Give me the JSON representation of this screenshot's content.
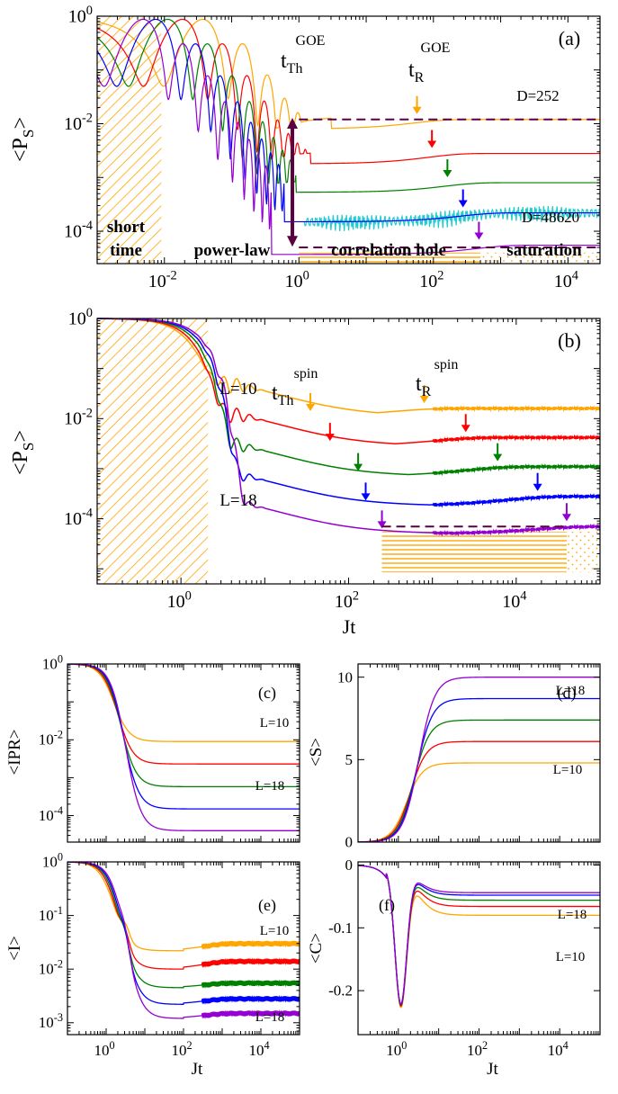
{
  "colors": {
    "orange": "#ffa500",
    "red": "#ff0000",
    "green": "#008000",
    "blue": "#0000ff",
    "violet": "#9400d3",
    "cyan": "#22cccc",
    "maroon": "#5a0040",
    "hatch": "#ffa500"
  },
  "chart_data": [
    {
      "id": "a",
      "type": "line",
      "panel_label": "(a)",
      "ylabel": "<P_S>",
      "xlabel": "",
      "xscale": "log",
      "yscale": "log",
      "xlim": [
        0.001,
        30000
      ],
      "ylim": [
        2.5e-05,
        1
      ],
      "xticks": [
        0.01,
        1,
        100,
        10000
      ],
      "xtick_exps": [
        "-2",
        "0",
        "2",
        "4"
      ],
      "yticks": [
        0.0001,
        0.01,
        1
      ],
      "ytick_exps": [
        "-4",
        "-2",
        "0"
      ],
      "annotations": {
        "tth": {
          "main": "t",
          "sub": "Th",
          "sup": "GOE"
        },
        "tr": {
          "main": "t",
          "sub": "R",
          "sup": "GOE"
        },
        "d_top": "D=252",
        "d_bottom": "D=48620",
        "regions": [
          "short time",
          "power-law",
          "correlation hole",
          "saturation"
        ]
      },
      "series": [
        {
          "color": "orange",
          "sat": 0.012,
          "tw": 0.1,
          "min": 0.008,
          "tr": 60
        },
        {
          "color": "red",
          "sat": 0.0028,
          "tw": 0.05,
          "min": 0.0018,
          "tr": 100
        },
        {
          "color": "green",
          "sat": 0.0008,
          "tw": 0.03,
          "min": 0.00053,
          "tr": 170
        },
        {
          "color": "blue",
          "sat": 0.00022,
          "tw": 0.02,
          "min": 0.00015,
          "tr": 290
        },
        {
          "color": "violet",
          "sat": 5.5e-05,
          "tw": 0.013,
          "min": 3.7e-05,
          "tr": 500
        }
      ]
    },
    {
      "id": "b",
      "type": "line",
      "panel_label": "(b)",
      "ylabel": "<P_S>",
      "xlabel": "Jt",
      "xscale": "log",
      "yscale": "log",
      "xlim": [
        0.1,
        100000
      ],
      "ylim": [
        5e-06,
        1
      ],
      "xticks": [
        1,
        100,
        10000
      ],
      "xtick_exps": [
        "0",
        "2",
        "4"
      ],
      "yticks": [
        0.0001,
        0.01,
        1
      ],
      "ytick_exps": [
        "-4",
        "-2",
        "0"
      ],
      "annotations": {
        "tth": {
          "main": "t",
          "sub": "Th",
          "sup": "spin"
        },
        "tr": {
          "main": "t",
          "sub": "R",
          "sup": "spin"
        },
        "l_top": "L=10",
        "l_bottom": "L=18"
      },
      "series": [
        {
          "color": "orange",
          "sat": 0.016,
          "min": 0.011,
          "tth": 35,
          "tr": 800
        },
        {
          "color": "red",
          "sat": 0.0042,
          "min": 0.0028,
          "tth": 60,
          "tr": 2500
        },
        {
          "color": "green",
          "sat": 0.0011,
          "min": 0.0007,
          "tth": 130,
          "tr": 6000
        },
        {
          "color": "blue",
          "sat": 0.00028,
          "min": 0.00018,
          "tth": 160,
          "tr": 18000
        },
        {
          "color": "violet",
          "sat": 7e-05,
          "min": 5e-05,
          "tth": 250,
          "tr": 40000
        }
      ]
    },
    {
      "id": "c",
      "type": "line",
      "panel_label": "(c)",
      "ylabel": "<IPR>",
      "xlabel": "",
      "xscale": "log",
      "yscale": "log",
      "xlim": [
        0.1,
        100000
      ],
      "ylim": [
        2e-05,
        1
      ],
      "xticks": [],
      "xtick_exps": [],
      "yticks": [
        0.0001,
        0.01,
        1
      ],
      "ytick_exps": [
        "-4",
        "-2",
        "0"
      ],
      "annotations": {
        "l_top": "L=10",
        "l_bottom": "L=18"
      },
      "series": [
        {
          "color": "orange",
          "sat": 0.009
        },
        {
          "color": "red",
          "sat": 0.0023
        },
        {
          "color": "green",
          "sat": 0.00058
        },
        {
          "color": "blue",
          "sat": 0.00015
        },
        {
          "color": "violet",
          "sat": 4e-05
        }
      ]
    },
    {
      "id": "d",
      "type": "line",
      "panel_label": "(d)",
      "ylabel": "<S>",
      "xlabel": "",
      "xscale": "log",
      "yscale": "linear",
      "xlim": [
        0.1,
        100000
      ],
      "ylim": [
        0,
        10.8
      ],
      "xticks": [],
      "xtick_exps": [],
      "yticks": [
        0,
        5,
        10
      ],
      "ytick_labels": [
        "0",
        "5",
        "10"
      ],
      "annotations": {
        "l_top": "L=18",
        "l_bottom": "L=10"
      },
      "series": [
        {
          "color": "orange",
          "sat": 4.8
        },
        {
          "color": "red",
          "sat": 6.1
        },
        {
          "color": "green",
          "sat": 7.4
        },
        {
          "color": "blue",
          "sat": 8.7
        },
        {
          "color": "violet",
          "sat": 10.0
        }
      ]
    },
    {
      "id": "e",
      "type": "line",
      "panel_label": "(e)",
      "ylabel": "<I>",
      "xlabel": "Jt",
      "xscale": "log",
      "yscale": "log",
      "xlim": [
        0.1,
        100000
      ],
      "ylim": [
        0.0006,
        1
      ],
      "xticks": [
        1,
        100,
        10000
      ],
      "xtick_exps": [
        "0",
        "2",
        "4"
      ],
      "yticks": [
        0.001,
        0.01,
        0.1,
        1
      ],
      "ytick_exps": [
        "-3",
        "-2",
        "-1",
        "0"
      ],
      "annotations": {
        "l_top": "L=10",
        "l_bottom": "L=18"
      },
      "series": [
        {
          "color": "orange",
          "sat": 0.03,
          "min": 0.022
        },
        {
          "color": "red",
          "sat": 0.014,
          "min": 0.01
        },
        {
          "color": "green",
          "sat": 0.0055,
          "min": 0.0045
        },
        {
          "color": "blue",
          "sat": 0.0028,
          "min": 0.0022
        },
        {
          "color": "violet",
          "sat": 0.0015,
          "min": 0.0012
        }
      ]
    },
    {
      "id": "f",
      "type": "line",
      "panel_label": "(f)",
      "ylabel": "<C>",
      "xlabel": "Jt",
      "xscale": "log",
      "yscale": "linear",
      "xlim": [
        0.1,
        100000
      ],
      "ylim": [
        -0.27,
        0.005
      ],
      "xticks": [
        1,
        100,
        10000
      ],
      "xtick_exps": [
        "0",
        "2",
        "4"
      ],
      "yticks": [
        -0.2,
        -0.1,
        0
      ],
      "ytick_labels": [
        "-0.2",
        "-0.1",
        "0"
      ],
      "annotations": {
        "l_top": "L=18",
        "l_bottom": "L=10"
      },
      "series": [
        {
          "color": "orange",
          "sat": -0.08
        },
        {
          "color": "red",
          "sat": -0.066
        },
        {
          "color": "green",
          "sat": -0.056
        },
        {
          "color": "blue",
          "sat": -0.048
        },
        {
          "color": "violet",
          "sat": -0.044
        }
      ]
    }
  ]
}
